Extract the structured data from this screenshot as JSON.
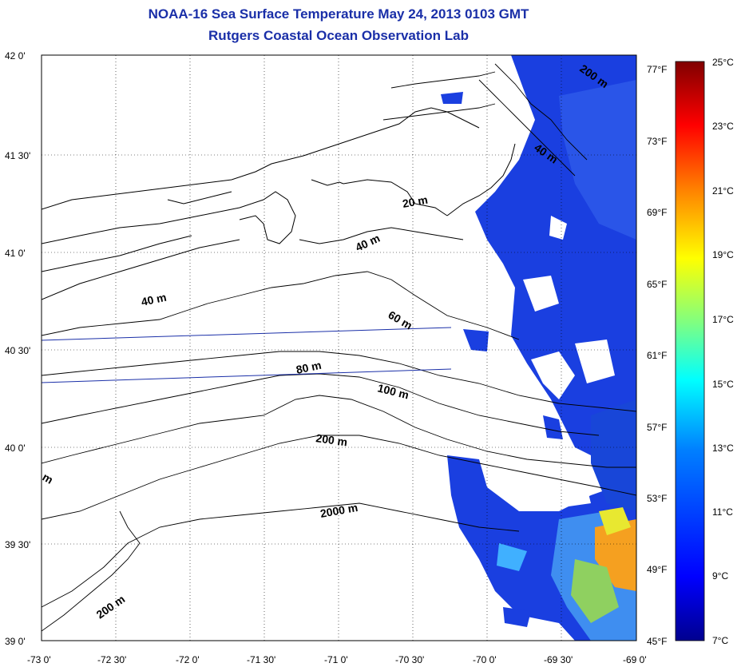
{
  "title": {
    "line1": "NOAA-16 Sea Surface Temperature May 24, 2013 0103 GMT",
    "line2": "Rutgers Coastal Ocean Observation Lab"
  },
  "map": {
    "lat_ticks": [
      "42 0'",
      "41 30'",
      "41 0'",
      "40 30'",
      "40 0'",
      "39 30'",
      "39 0'"
    ],
    "lon_ticks": [
      "-73 0'",
      "-72 30'",
      "-72 0'",
      "-71 30'",
      "-71 0'",
      "-70 30'",
      "-70 0'",
      "-69 30'",
      "-69 0'"
    ],
    "contour_labels": [
      "20 m",
      "40 m",
      "40 m",
      "40 m",
      "60 m",
      "80 m",
      "100 m",
      "200 m",
      "2000 m",
      "200 m",
      "200 m",
      "m"
    ],
    "grid": true
  },
  "colorbar": {
    "celsius_labels": [
      "25°C",
      "23°C",
      "21°C",
      "19°C",
      "17°C",
      "15°C",
      "13°C",
      "11°C",
      "9°C",
      "7°C"
    ],
    "fahrenheit_labels": [
      "77°F",
      "73°F",
      "69°F",
      "65°F",
      "61°F",
      "57°F",
      "53°F",
      "49°F",
      "45°F"
    ],
    "celsius_range": [
      7,
      25
    ],
    "colors": [
      "#00008f",
      "#0000ff",
      "#0080ff",
      "#00ffff",
      "#80ff80",
      "#ffff00",
      "#ff8000",
      "#ff0000",
      "#800000"
    ]
  }
}
